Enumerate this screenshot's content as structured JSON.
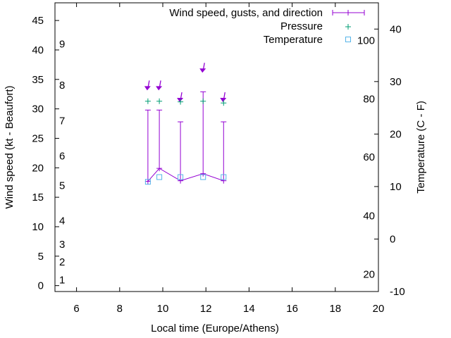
{
  "chart_data": {
    "type": "line",
    "xlabel": "Local time (Europe/Athens)",
    "ylabel": "Wind speed (kt - Beaufort)",
    "y2label": "Temperature (C - F)",
    "xlim": [
      5,
      20
    ],
    "ylim": [
      -1,
      48
    ],
    "y2lim": [
      -10,
      45
    ],
    "xticks": [
      6,
      8,
      10,
      12,
      14,
      16,
      18,
      20
    ],
    "yticks": [
      0,
      5,
      10,
      15,
      20,
      25,
      30,
      35,
      40,
      45
    ],
    "y2ticks": [
      -10,
      0,
      10,
      20,
      30,
      40
    ],
    "beaufort_labels": [
      {
        "label": "1",
        "kt": 1
      },
      {
        "label": "2",
        "kt": 4
      },
      {
        "label": "3",
        "kt": 7
      },
      {
        "label": "4",
        "kt": 11
      },
      {
        "label": "5",
        "kt": 17
      },
      {
        "label": "6",
        "kt": 22
      },
      {
        "label": "7",
        "kt": 28
      },
      {
        "label": "8",
        "kt": 34
      },
      {
        "label": "9",
        "kt": 41
      }
    ],
    "fahrenheit_labels": [
      {
        "label": "20",
        "c": -6.7
      },
      {
        "label": "40",
        "c": 4.4
      },
      {
        "label": "60",
        "c": 15.6
      },
      {
        "label": "80",
        "c": 26.7
      },
      {
        "label": "100",
        "c": 37.8
      }
    ],
    "legend": {
      "placement": "top-right",
      "entries": [
        "Wind speed, gusts, and direction",
        "Pressure",
        "Temperature"
      ]
    },
    "x": [
      9.31,
      9.84,
      10.82,
      11.87,
      12.82
    ],
    "series": [
      {
        "name": "Wind speed",
        "values": [
          17.7,
          19.9,
          17.8,
          19.0,
          17.8
        ],
        "color": "#9400d3"
      },
      {
        "name": "Gusts",
        "values": [
          29.8,
          29.8,
          27.8,
          32.9,
          27.8
        ],
        "color": "#9400d3"
      },
      {
        "name": "Direction arrow position (kt axis)",
        "values": [
          33.5,
          33.5,
          31.5,
          36.5,
          31.5
        ],
        "color": "#9400d3"
      },
      {
        "name": "Pressure (scaled, kt axis)",
        "values": [
          31.3,
          31.3,
          31.2,
          31.3,
          31.0
        ],
        "color": "#009e73"
      },
      {
        "name": "Temperature (C)",
        "values": [
          10.9,
          11.8,
          11.8,
          11.8,
          11.8
        ],
        "color": "#56b4e9"
      }
    ]
  }
}
